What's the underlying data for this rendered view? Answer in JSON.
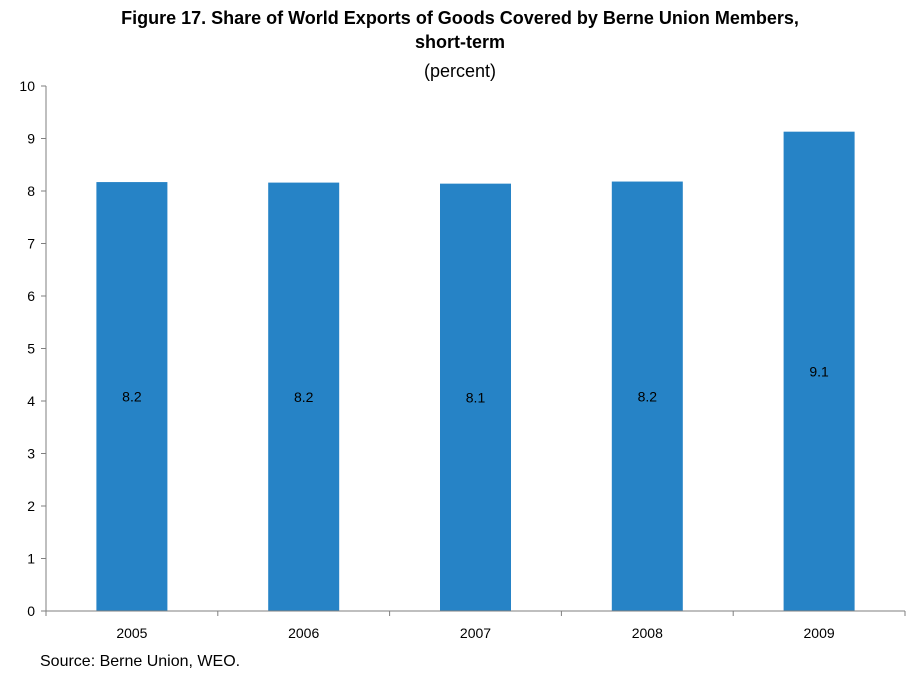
{
  "title_line1": "Figure 17. Share of World Exports of Goods Covered by Berne Union Members,",
  "title_line2": "short-term",
  "subtitle": "(percent)",
  "source": "Source: Berne Union, WEO.",
  "colors": {
    "bar": "#2683C6",
    "axis": "#7f7f7f"
  },
  "chart_data": {
    "type": "bar",
    "title": "Figure 17. Share of World Exports of Goods Covered by Berne Union Members, short-term",
    "subtitle": "(percent)",
    "categories": [
      "2005",
      "2006",
      "2007",
      "2008",
      "2009"
    ],
    "values": [
      8.17,
      8.16,
      8.14,
      8.18,
      9.13
    ],
    "data_labels": [
      "8.2",
      "8.2",
      "8.1",
      "8.2",
      "9.1"
    ],
    "ylim": [
      0,
      10
    ],
    "yticks": [
      "0",
      "1",
      "2",
      "3",
      "4",
      "5",
      "6",
      "7",
      "8",
      "9",
      "10"
    ],
    "grid": false,
    "legend": "none"
  }
}
